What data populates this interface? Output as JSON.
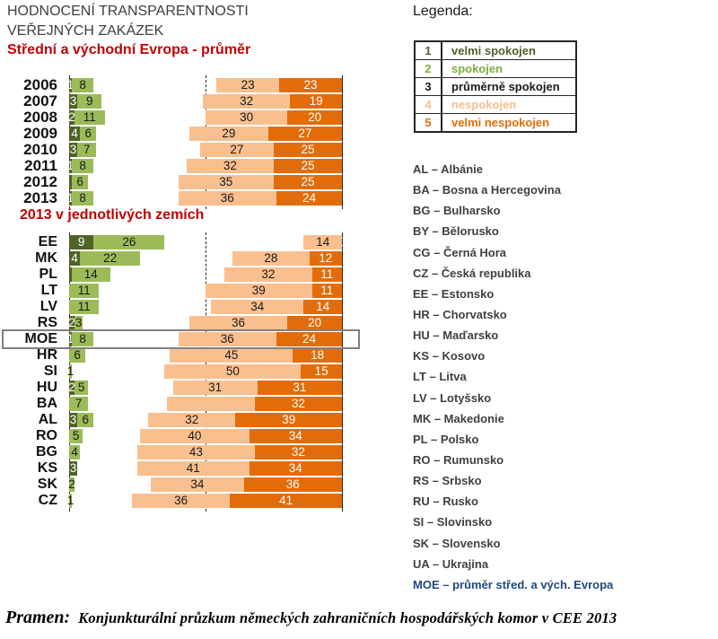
{
  "header": {
    "title_line1": "HODNOCENÍ TRANSPARENTNOSTI",
    "title_line2": "VEŘEJNÝCH ZAKÁZEK"
  },
  "colors": {
    "title_gray": "#3f3f3f",
    "accent_red": "#c00000",
    "dark_green": "#4f6228",
    "light_green": "#9bbb59",
    "light_orange": "#fabf8f",
    "dark_orange": "#e36c0a",
    "highlight_box_gray": "#808080",
    "moe_blue": "#1f497d",
    "list_text_gray": "#404040"
  },
  "chart_data": [
    {
      "type": "bar",
      "orientation": "horizontal",
      "stacked": "100%",
      "title": "Střední a východní Evropa - průměr",
      "xlabel": "",
      "ylabel": "",
      "axis": {
        "min": 0,
        "max": 100,
        "gridlines": [
          {
            "pos": 0,
            "style": "dashed"
          },
          {
            "pos": 50,
            "style": "dashed"
          },
          {
            "pos": 100,
            "style": "solid"
          }
        ]
      },
      "note": "middle category '3 průměrně spokojen' is drawn white/invisible (remainder to 100)",
      "categories": [
        "2006",
        "2007",
        "2008",
        "2009",
        "2010",
        "2011",
        "2012",
        "2013"
      ],
      "highlight": null,
      "series": [
        {
          "name": "1 velmi spokojen",
          "align": "left",
          "color": "#4f6228",
          "text": "#ffffff",
          "values": [
            1,
            3,
            2,
            4,
            3,
            1,
            1,
            1
          ],
          "labels": [
            "1",
            "3",
            "2",
            "4",
            "3",
            "1",
            "",
            "1"
          ]
        },
        {
          "name": "2 spokojen",
          "align": "left",
          "color": "#9bbb59",
          "text": "#1a1a1a",
          "values": [
            8,
            9,
            11,
            6,
            7,
            8,
            6,
            8
          ],
          "labels": [
            "8",
            "9",
            "11",
            "6",
            "7",
            "8",
            "6",
            "8"
          ]
        },
        {
          "name": "4 nespokojen",
          "align": "right",
          "color": "#fabf8f",
          "text": "#1a1a1a",
          "values": [
            23,
            32,
            30,
            29,
            27,
            32,
            35,
            36
          ],
          "labels": [
            "23",
            "32",
            "30",
            "29",
            "27",
            "32",
            "35",
            "36"
          ]
        },
        {
          "name": "5 velmi nespokojen",
          "align": "right",
          "color": "#e36c0a",
          "text": "#ffffff",
          "values": [
            23,
            19,
            20,
            27,
            25,
            25,
            25,
            24
          ],
          "labels": [
            "23",
            "19",
            "20",
            "27",
            "25",
            "25",
            "25",
            "24"
          ]
        }
      ]
    },
    {
      "type": "bar",
      "orientation": "horizontal",
      "stacked": "100%",
      "title": "2013 v jednotlivých zemích",
      "xlabel": "",
      "ylabel": "",
      "axis": {
        "min": 0,
        "max": 100,
        "gridlines": [
          {
            "pos": 0,
            "style": "solid"
          },
          {
            "pos": 50,
            "style": "dashed"
          },
          {
            "pos": 100,
            "style": "solid"
          }
        ]
      },
      "note": "middle category '3 průměrně spokojen' is drawn white/invisible (remainder to 100); MOE row framed with gray box",
      "categories": [
        "EE",
        "MK",
        "PL",
        "LT",
        "LV",
        "RS",
        "MOE",
        "HR",
        "SI",
        "HU",
        "BA",
        "AL",
        "RO",
        "BG",
        "KS",
        "SK",
        "CZ"
      ],
      "highlight": "MOE",
      "series": [
        {
          "name": "1 velmi spokojen",
          "align": "left",
          "color": "#4f6228",
          "text": "#ffffff",
          "values": [
            9,
            4,
            1,
            0,
            0,
            2,
            1,
            0,
            0,
            2,
            0,
            3,
            0,
            0,
            3,
            0,
            0
          ],
          "labels": [
            "9",
            "4",
            "",
            "",
            "",
            "2",
            "1",
            "",
            "",
            "2",
            "",
            "3",
            "",
            "",
            "3",
            "",
            ""
          ]
        },
        {
          "name": "2 spokojen",
          "align": "left",
          "color": "#9bbb59",
          "text": "#1a1a1a",
          "values": [
            26,
            22,
            14,
            11,
            11,
            3,
            8,
            6,
            1,
            5,
            7,
            6,
            5,
            4,
            0,
            2,
            1
          ],
          "labels": [
            "26",
            "22",
            "14",
            "11",
            "11",
            "3",
            "8",
            "6",
            "1",
            "5",
            "7",
            "6",
            "5",
            "4",
            "",
            "2",
            "1"
          ]
        },
        {
          "name": "4 nespokojen",
          "align": "right",
          "color": "#fabf8f",
          "text": "#1a1a1a",
          "values": [
            14,
            28,
            32,
            39,
            34,
            36,
            36,
            45,
            50,
            31,
            32,
            32,
            40,
            43,
            41,
            34,
            36
          ],
          "labels": [
            "14",
            "28",
            "32",
            "39",
            "34",
            "36",
            "36",
            "45",
            "50",
            "31",
            "",
            "32",
            "40",
            "43",
            "41",
            "34",
            "36"
          ]
        },
        {
          "name": "5 velmi nespokojen",
          "align": "right",
          "color": "#e36c0a",
          "text": "#ffffff",
          "values": [
            0,
            12,
            11,
            11,
            14,
            20,
            24,
            18,
            15,
            31,
            32,
            39,
            34,
            32,
            34,
            36,
            41
          ],
          "labels": [
            "0",
            "12",
            "11",
            "11",
            "14",
            "20",
            "24",
            "18",
            "15",
            "31",
            "32",
            "39",
            "34",
            "32",
            "34",
            "36",
            "41"
          ]
        }
      ]
    }
  ],
  "legend": {
    "title": "Legenda:",
    "rows": [
      {
        "num": "1",
        "label": "velmi spokojen",
        "color": "#4f6228"
      },
      {
        "num": "2",
        "label": "spokojen",
        "color": "#7fae3f"
      },
      {
        "num": "3",
        "label": "průměrně spokojen",
        "color": "#1a1a1a"
      },
      {
        "num": "4",
        "label": "nespokojen",
        "color": "#fabf8f"
      },
      {
        "num": "5",
        "label": "velmi nespokojen",
        "color": "#e36c0a"
      }
    ]
  },
  "country_list": [
    {
      "text": "AL – Albánie",
      "accent": false
    },
    {
      "text": "BA – Bosna a Hercegovina",
      "accent": false
    },
    {
      "text": "BG – Bulharsko",
      "accent": false
    },
    {
      "text": "BY – Bělorusko",
      "accent": false
    },
    {
      "text": "CG – Černá Hora",
      "accent": false
    },
    {
      "text": "CZ – Česká republika",
      "accent": false
    },
    {
      "text": "EE – Estonsko",
      "accent": false
    },
    {
      "text": "HR – Chorvatsko",
      "accent": false
    },
    {
      "text": "HU – Maďarsko",
      "accent": false
    },
    {
      "text": "KS – Kosovo",
      "accent": false
    },
    {
      "text": "LT – Litva",
      "accent": false
    },
    {
      "text": "LV – Lotyšsko",
      "accent": false
    },
    {
      "text": "MK – Makedonie",
      "accent": false
    },
    {
      "text": "PL – Polsko",
      "accent": false
    },
    {
      "text": "RO – Rumunsko",
      "accent": false
    },
    {
      "text": "RS – Srbsko",
      "accent": false
    },
    {
      "text": "RU – Rusko",
      "accent": false
    },
    {
      "text": "SI – Slovinsko",
      "accent": false
    },
    {
      "text": "SK – Slovensko",
      "accent": false
    },
    {
      "text": "UA – Ukrajina",
      "accent": false
    },
    {
      "text": "MOE – průměr střed. a vých. Evropa",
      "accent": true
    }
  ],
  "source": {
    "prefix": "Pramen:",
    "text": "Konjunkturální průzkum německých zahraničních hospodářských komor v CEE 2013"
  }
}
